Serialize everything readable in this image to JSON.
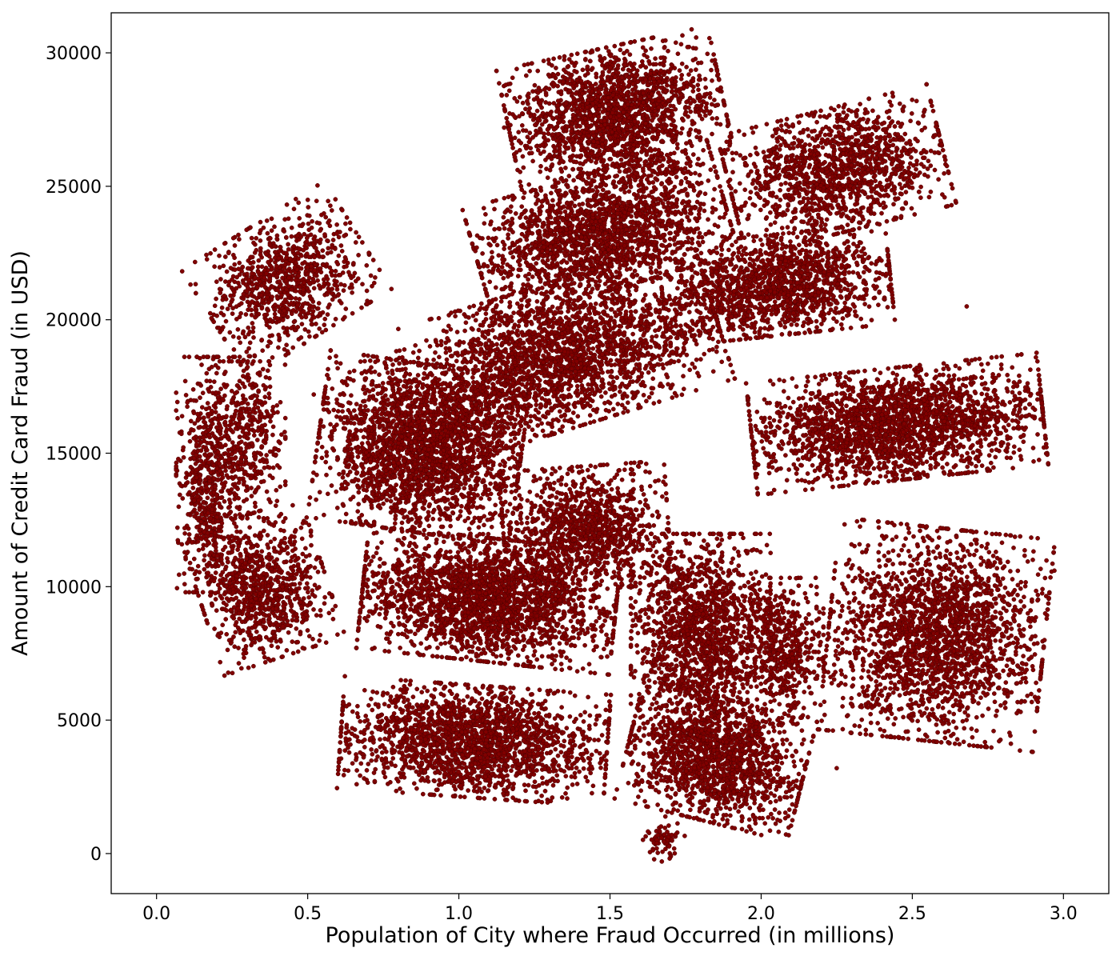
{
  "chart_data": {
    "type": "scatter",
    "title": "",
    "xlabel": "Population of City where Fraud Occurred (in millions)",
    "ylabel": "Amount of Credit Card Fraud (in USD)",
    "xlim": [
      -0.15,
      3.15
    ],
    "ylim": [
      -1500,
      31500
    ],
    "xticks": [
      0.0,
      0.5,
      1.0,
      1.5,
      2.0,
      2.5,
      3.0
    ],
    "xtick_labels": [
      "0.0",
      "0.5",
      "1.0",
      "1.5",
      "2.0",
      "2.5",
      "3.0"
    ],
    "yticks": [
      0,
      5000,
      10000,
      15000,
      20000,
      25000,
      30000
    ],
    "ytick_labels": [
      "0",
      "5000",
      "10000",
      "15000",
      "20000",
      "25000",
      "30000"
    ],
    "grid": false,
    "legend": "none",
    "marker_color": "#800000",
    "marker_edge_color": "#4d0000",
    "clusters": [
      {
        "x": 1.52,
        "y": 27700,
        "sx": 0.17,
        "sy": 1200,
        "n": 1900,
        "angle_deg": -12
      },
      {
        "x": 2.25,
        "y": 25600,
        "sx": 0.17,
        "sy": 1100,
        "n": 1400,
        "angle_deg": -14
      },
      {
        "x": 1.47,
        "y": 23300,
        "sx": 0.2,
        "sy": 1050,
        "n": 1900,
        "angle_deg": -16
      },
      {
        "x": 2.05,
        "y": 21300,
        "sx": 0.18,
        "sy": 900,
        "n": 1500,
        "angle_deg": -6
      },
      {
        "x": 1.32,
        "y": 18600,
        "sx": 0.26,
        "sy": 1300,
        "n": 2500,
        "angle_deg": -17
      },
      {
        "x": 0.43,
        "y": 21500,
        "sx": 0.1,
        "sy": 1500,
        "n": 900,
        "angle_deg": 58
      },
      {
        "x": 0.17,
        "y": 14200,
        "sx": 0.05,
        "sy": 2100,
        "n": 600,
        "angle_deg": 0
      },
      {
        "x": 0.35,
        "y": 10000,
        "sx": 0.1,
        "sy": 1300,
        "n": 900,
        "angle_deg": -18
      },
      {
        "x": 0.3,
        "y": 15500,
        "sx": 0.06,
        "sy": 1400,
        "n": 400,
        "angle_deg": 0
      },
      {
        "x": 0.87,
        "y": 15200,
        "sx": 0.16,
        "sy": 1500,
        "n": 2400,
        "angle_deg": 8
      },
      {
        "x": 2.45,
        "y": 16100,
        "sx": 0.23,
        "sy": 1000,
        "n": 2300,
        "angle_deg": -6
      },
      {
        "x": 1.42,
        "y": 12200,
        "sx": 0.13,
        "sy": 1100,
        "n": 1100,
        "angle_deg": -4
      },
      {
        "x": 1.1,
        "y": 9500,
        "sx": 0.2,
        "sy": 1100,
        "n": 2300,
        "angle_deg": 6
      },
      {
        "x": 1.8,
        "y": 8200,
        "sx": 0.11,
        "sy": 1800,
        "n": 1600,
        "angle_deg": 0
      },
      {
        "x": 2.08,
        "y": 7600,
        "sx": 0.06,
        "sy": 1300,
        "n": 500,
        "angle_deg": 0
      },
      {
        "x": 2.58,
        "y": 8200,
        "sx": 0.17,
        "sy": 1900,
        "n": 2200,
        "angle_deg": 6
      },
      {
        "x": 1.85,
        "y": 3500,
        "sx": 0.14,
        "sy": 1100,
        "n": 1500,
        "angle_deg": 14
      },
      {
        "x": 1.05,
        "y": 4200,
        "sx": 0.21,
        "sy": 1000,
        "n": 2000,
        "angle_deg": 4
      },
      {
        "x": 1.68,
        "y": 550,
        "sx": 0.03,
        "sy": 350,
        "n": 70,
        "angle_deg": -30
      }
    ],
    "outlier_points": [
      [
        0.32,
        19700
      ],
      [
        0.52,
        17200
      ],
      [
        0.67,
        4200
      ],
      [
        1.15,
        27200
      ],
      [
        2.68,
        20500
      ],
      [
        2.97,
        10600
      ],
      [
        2.25,
        3200
      ],
      [
        1.62,
        14600
      ]
    ]
  }
}
